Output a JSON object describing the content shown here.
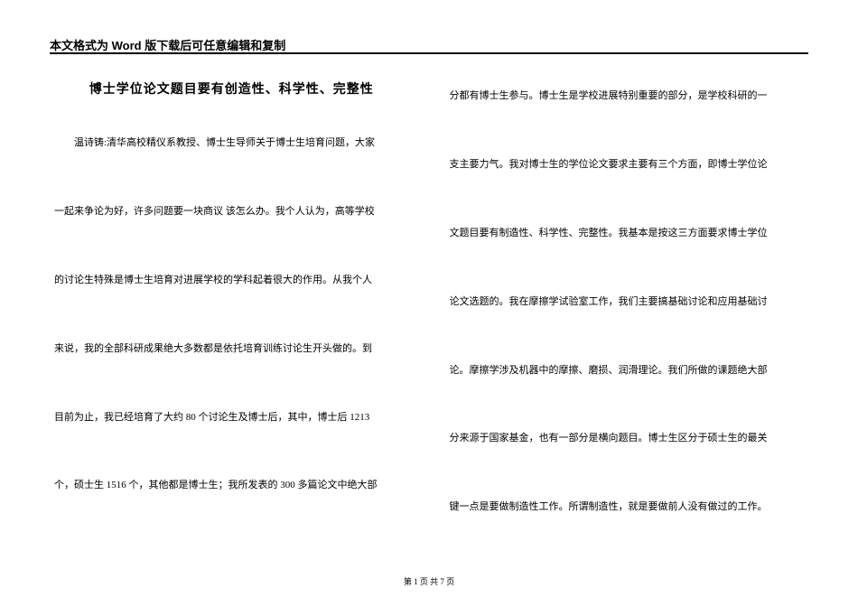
{
  "header": "本文格式为 Word 版下载后可任意编辑和复制",
  "title": "博士学位论文题目要有创造性、科学性、完整性",
  "left_column": {
    "p1": "温诗铸:清华高校精仪系教授、博士生导师关于博士生培育问题，大家",
    "p2": "一起来争论为好，许多问题要一块商议  该怎么办。我个人认为，高等学校",
    "p3": "的讨论生特殊是博士生培育对进展学校的学科起着很大的作用。从我个人",
    "p4": "来说，我的全部科研成果绝大多数都是依托培育训练讨论生开头做的。到",
    "p5": "目前为止，我已经培育了大约 80 个讨论生及博士后，其中，博士后 1213",
    "p6": "个，硕士生 1516 个，其他都是博士生；我所发表的 300 多篇论文中绝大部"
  },
  "right_column": {
    "p1": "分都有博士生参与。博士生是学校进展特别重要的部分，是学校科研的一",
    "p2": "支主要力气。我对博士生的学位论文要求主要有三个方面，即博士学位论",
    "p3": "文题目要有制造性、科学性、完整性。我基本是按这三方面要求博士学位",
    "p4": "论文选题的。我在摩擦学试验室工作，我们主要搞基础讨论和应用基础讨",
    "p5": "论。摩擦学涉及机器中的摩擦、磨损、润滑理论。我们所做的课题绝大部",
    "p6": "分来源于国家基金，也有一部分是横向题目。博士生区分于硕士生的最关",
    "p7": "键一点是要做制造性工作。所谓制造性，就是要做前人没有做过的工作。"
  },
  "footer": "第 1 页 共 7 页"
}
